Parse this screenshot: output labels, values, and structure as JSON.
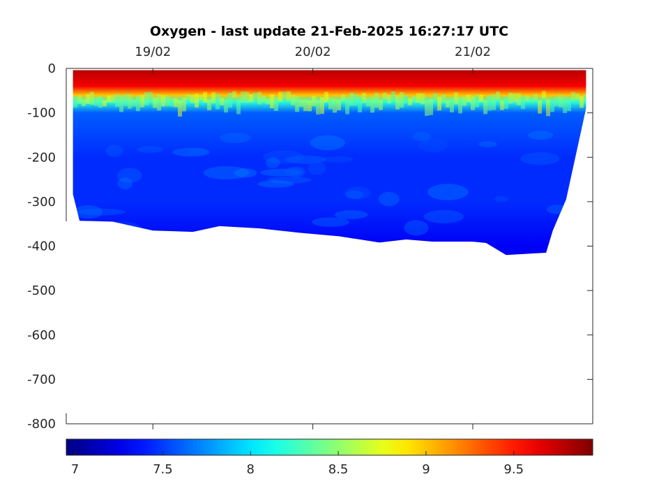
{
  "chart_data": {
    "type": "heatmap",
    "title": "Oxygen - last update 21-Feb-2025 16:27:17 UTC",
    "xlabel": "",
    "ylabel": "",
    "x_ticks": [
      {
        "date": "2025-02-19",
        "label": "19/02"
      },
      {
        "date": "2025-02-20",
        "label": "20/02"
      },
      {
        "date": "2025-02-21",
        "label": "21/02"
      }
    ],
    "xlim": [
      "2025-02-18T11:00",
      "2025-02-21T18:00"
    ],
    "ylim": [
      -800,
      0
    ],
    "y_ticks": [
      0,
      -100,
      -200,
      -300,
      -400,
      -500,
      -600,
      -700,
      -800
    ],
    "y_tick_labels": [
      "0",
      "-100",
      "-200",
      "-300",
      "-400",
      "-500",
      "-600",
      "-700",
      "-800"
    ],
    "colorbar": {
      "colormap": "jet",
      "range": [
        6.95,
        9.95
      ],
      "ticks": [
        7,
        7.5,
        8,
        8.5,
        9,
        9.5
      ],
      "tick_labels": [
        "7",
        "7.5",
        "8",
        "8.5",
        "9",
        "9.5"
      ]
    },
    "profile_bottom_depth": [
      {
        "time": "2025-02-18T12:00",
        "depth": -283
      },
      {
        "time": "2025-02-18T13:00",
        "depth": -343
      },
      {
        "time": "2025-02-18T18:00",
        "depth": -345
      },
      {
        "time": "2025-02-19T00:00",
        "depth": -365
      },
      {
        "time": "2025-02-19T06:00",
        "depth": -368
      },
      {
        "time": "2025-02-19T10:00",
        "depth": -355
      },
      {
        "time": "2025-02-19T16:00",
        "depth": -360
      },
      {
        "time": "2025-02-19T22:00",
        "depth": -370
      },
      {
        "time": "2025-02-20T04:00",
        "depth": -378
      },
      {
        "time": "2025-02-20T10:00",
        "depth": -392
      },
      {
        "time": "2025-02-20T14:00",
        "depth": -385
      },
      {
        "time": "2025-02-20T18:00",
        "depth": -390
      },
      {
        "time": "2025-02-21T00:00",
        "depth": -390
      },
      {
        "time": "2025-02-21T02:00",
        "depth": -393
      },
      {
        "time": "2025-02-21T05:00",
        "depth": -420
      },
      {
        "time": "2025-02-21T11:00",
        "depth": -415
      },
      {
        "time": "2025-02-21T12:00",
        "depth": -365
      },
      {
        "time": "2025-02-21T14:00",
        "depth": -295
      },
      {
        "time": "2025-02-21T17:00",
        "depth": -90
      }
    ],
    "oxygen_profile": [
      {
        "depth": 0,
        "value": 9.8
      },
      {
        "depth": -40,
        "value": 9.6
      },
      {
        "depth": -60,
        "value": 9.0
      },
      {
        "depth": -75,
        "value": 8.2
      },
      {
        "depth": -100,
        "value": 7.6
      },
      {
        "depth": -200,
        "value": 7.45
      },
      {
        "depth": -300,
        "value": 7.45
      },
      {
        "depth": -400,
        "value": 7.3
      }
    ]
  }
}
